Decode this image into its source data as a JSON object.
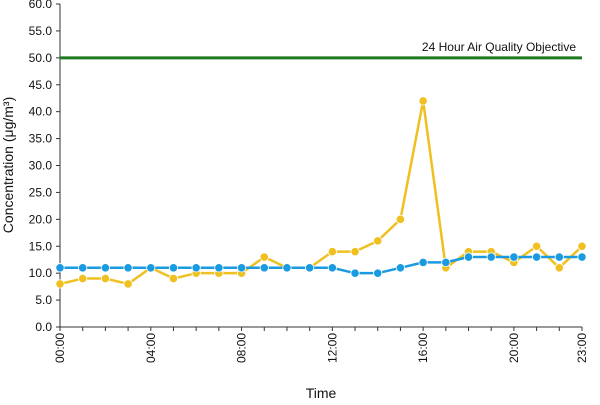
{
  "chart_data": {
    "type": "line",
    "xlabel": "Time",
    "ylabel": "Concentration (μg/m³)",
    "ylim": [
      0,
      60
    ],
    "yticks": [
      "0.0",
      "5.0",
      "10.0",
      "15.0",
      "20.0",
      "25.0",
      "30.0",
      "35.0",
      "40.0",
      "45.0",
      "50.0",
      "55.0",
      "60.0"
    ],
    "x": [
      "00:00",
      "01:00",
      "02:00",
      "03:00",
      "04:00",
      "05:00",
      "06:00",
      "07:00",
      "08:00",
      "09:00",
      "10:00",
      "11:00",
      "12:00",
      "13:00",
      "14:00",
      "15:00",
      "16:00",
      "17:00",
      "18:00",
      "19:00",
      "20:00",
      "21:00",
      "22:00",
      "23:00"
    ],
    "xticks": [
      "00:00",
      "04:00",
      "08:00",
      "12:00",
      "16:00",
      "20:00",
      "23:00"
    ],
    "objective": {
      "label": "24 Hour Air Quality Objective",
      "value": 50,
      "color": "#1e7a1e"
    },
    "series": [
      {
        "color": "#f0c020",
        "values": [
          8,
          9,
          9,
          8,
          11,
          9,
          10,
          10,
          10,
          13,
          11,
          11,
          14,
          14,
          16,
          20,
          42,
          11,
          14,
          14,
          12,
          15,
          11,
          15
        ]
      },
      {
        "color": "#1a9ae0",
        "values": [
          11,
          11,
          11,
          11,
          11,
          11,
          11,
          11,
          11,
          11,
          11,
          11,
          11,
          10,
          10,
          11,
          12,
          12,
          13,
          13,
          13,
          13,
          13,
          13
        ]
      }
    ],
    "grid": false,
    "legend": "none"
  }
}
